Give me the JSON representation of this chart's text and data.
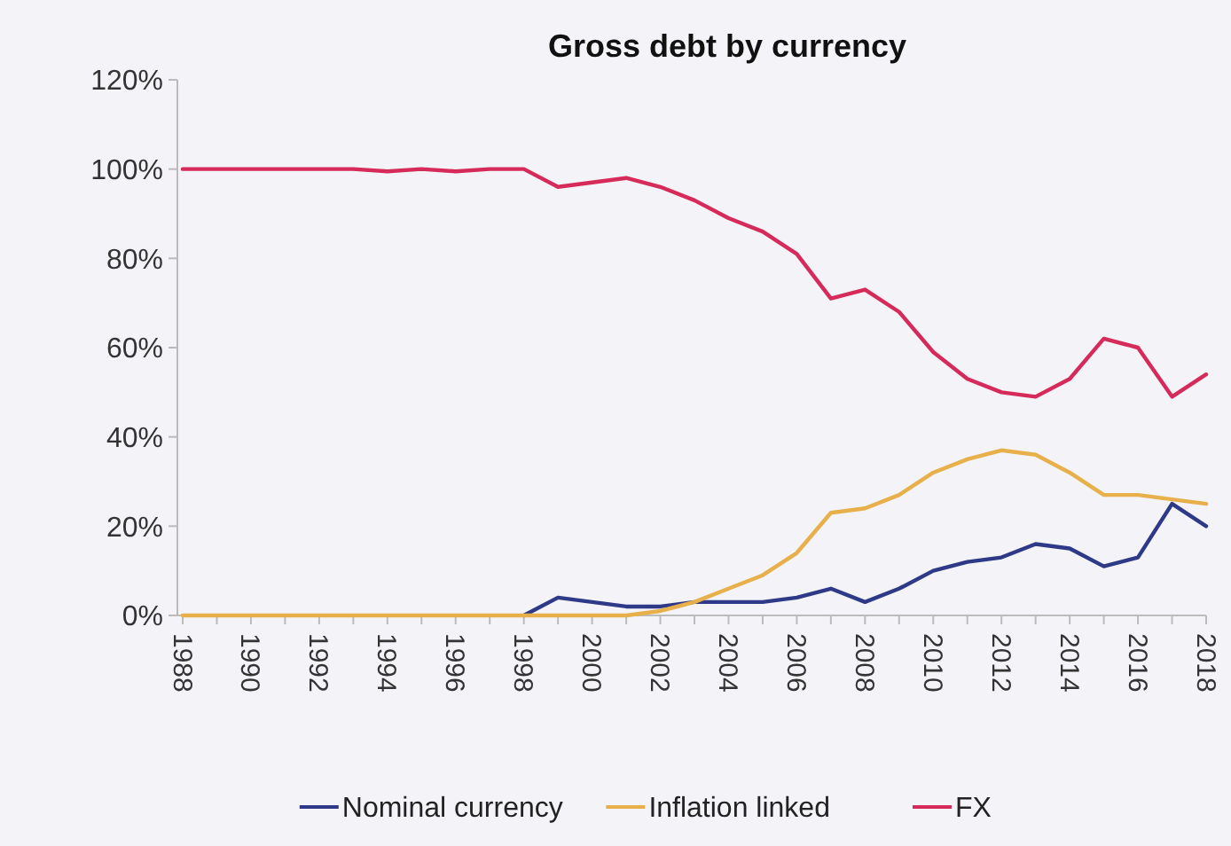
{
  "chart_data": {
    "type": "line",
    "title": "Gross debt by currency",
    "categories": [
      "1988",
      null,
      "1990",
      null,
      "1992",
      null,
      "1994",
      null,
      "1996",
      null,
      "1998",
      null,
      "2000",
      null,
      "2002",
      null,
      "2004",
      null,
      "2006",
      null,
      "2008",
      null,
      "2010",
      null,
      "2012",
      null,
      "2014",
      null,
      "2016",
      null,
      "2018"
    ],
    "series": [
      {
        "name": "Nominal currency",
        "color": "#2e3a87",
        "values": [
          null,
          null,
          null,
          null,
          null,
          null,
          null,
          null,
          null,
          null,
          0,
          4,
          3,
          2,
          2,
          3,
          3,
          3,
          4,
          6,
          3,
          6,
          10,
          12,
          13,
          16,
          15,
          11,
          13,
          25,
          20
        ]
      },
      {
        "name": "Inflation linked",
        "color": "#e8b04a",
        "values": [
          0,
          0,
          0,
          0,
          0,
          0,
          0,
          0,
          0,
          0,
          0,
          0,
          0,
          0,
          1,
          3,
          6,
          9,
          14,
          23,
          24,
          27,
          32,
          35,
          37,
          36,
          32,
          27,
          27,
          26,
          25
        ]
      },
      {
        "name": "FX",
        "color": "#d62b5a",
        "values": [
          100,
          100,
          100,
          100,
          100,
          100,
          99.5,
          100,
          99.5,
          100,
          100,
          96,
          97,
          98,
          96,
          93,
          89,
          86,
          81,
          71,
          73,
          68,
          59,
          53,
          50,
          49,
          53,
          62,
          60,
          49,
          54
        ]
      }
    ],
    "ylim": [
      0,
      120
    ],
    "yticks": [
      {
        "value": 0,
        "label": "0%"
      },
      {
        "value": 20,
        "label": "20%"
      },
      {
        "value": 40,
        "label": "40%"
      },
      {
        "value": 60,
        "label": "60%"
      },
      {
        "value": 80,
        "label": "80%"
      },
      {
        "value": 100,
        "label": "100%"
      },
      {
        "value": 120,
        "label": "120%"
      }
    ],
    "legend": "bottom",
    "grid": false
  }
}
